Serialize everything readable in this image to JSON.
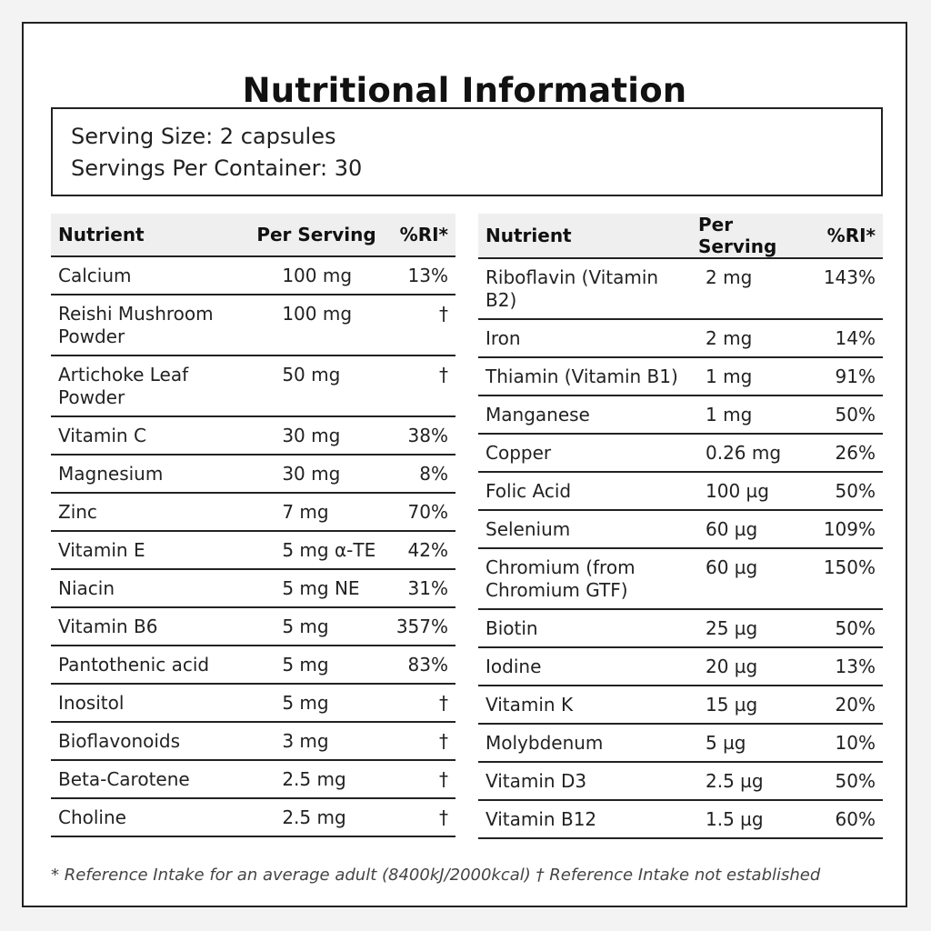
{
  "title": "Nutritional Information",
  "serving": {
    "size": "Serving Size: 2 capsules",
    "per_container": "Servings Per Container: 30"
  },
  "headers": {
    "nutrient": "Nutrient",
    "per_serving": "Per Serving",
    "ri": "%RI*"
  },
  "left_rows": [
    {
      "name": "Calcium",
      "amount": "100 mg",
      "ri": "13%"
    },
    {
      "name": "Reishi Mushroom Powder",
      "amount": "100 mg",
      "ri": "†"
    },
    {
      "name": "Artichoke Leaf Powder",
      "amount": "50 mg",
      "ri": "†"
    },
    {
      "name": "Vitamin C",
      "amount": "30 mg",
      "ri": "38%"
    },
    {
      "name": "Magnesium",
      "amount": "30 mg",
      "ri": "8%"
    },
    {
      "name": "Zinc",
      "amount": "7 mg",
      "ri": "70%"
    },
    {
      "name": "Vitamin E",
      "amount": "5 mg α-TE",
      "ri": "42%"
    },
    {
      "name": "Niacin",
      "amount": "5 mg NE",
      "ri": "31%"
    },
    {
      "name": "Vitamin B6",
      "amount": "5 mg",
      "ri": "357%"
    },
    {
      "name": "Pantothenic acid",
      "amount": "5 mg",
      "ri": "83%"
    },
    {
      "name": "Inositol",
      "amount": "5 mg",
      "ri": "†"
    },
    {
      "name": "Bioflavonoids",
      "amount": "3 mg",
      "ri": "†"
    },
    {
      "name": "Beta-Carotene",
      "amount": "2.5 mg",
      "ri": "†"
    },
    {
      "name": "Choline",
      "amount": "2.5 mg",
      "ri": "†"
    }
  ],
  "right_rows": [
    {
      "name": "Riboflavin (Vitamin B2)",
      "amount": "2 mg",
      "ri": "143%"
    },
    {
      "name": "Iron",
      "amount": "2 mg",
      "ri": "14%"
    },
    {
      "name": "Thiamin (Vitamin B1)",
      "amount": "1 mg",
      "ri": "91%"
    },
    {
      "name": "Manganese",
      "amount": "1 mg",
      "ri": "50%"
    },
    {
      "name": "Copper",
      "amount": "0.26 mg",
      "ri": "26%"
    },
    {
      "name": "Folic Acid",
      "amount": "100 µg",
      "ri": "50%"
    },
    {
      "name": "Selenium",
      "amount": "60 µg",
      "ri": "109%"
    },
    {
      "name": "Chromium (from Chromium GTF)",
      "amount": "60 µg",
      "ri": "150%"
    },
    {
      "name": "Biotin",
      "amount": "25 µg",
      "ri": "50%"
    },
    {
      "name": "Iodine",
      "amount": "20 µg",
      "ri": "13%"
    },
    {
      "name": "Vitamin K",
      "amount": "15 µg",
      "ri": "20%"
    },
    {
      "name": "Molybdenum",
      "amount": "5 µg",
      "ri": "10%"
    },
    {
      "name": "Vitamin D3",
      "amount": "2.5 µg",
      "ri": "50%"
    },
    {
      "name": "Vitamin B12",
      "amount": "1.5 µg",
      "ri": "60%"
    }
  ],
  "footnote": "* Reference Intake for an average adult (8400kJ/2000kcal) † Reference Intake not established"
}
